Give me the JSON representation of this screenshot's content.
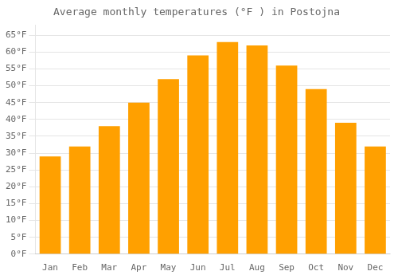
{
  "chart_data": {
    "type": "bar",
    "title": "Average monthly temperatures (°F ) in Postojna",
    "categories": [
      "Jan",
      "Feb",
      "Mar",
      "Apr",
      "May",
      "Jun",
      "Jul",
      "Aug",
      "Sep",
      "Oct",
      "Nov",
      "Dec"
    ],
    "values": [
      29,
      32,
      38,
      45,
      52,
      59,
      63,
      62,
      56,
      49,
      39,
      32
    ],
    "color": "#FFA000",
    "ylim": [
      0,
      68
    ],
    "yticks": [
      {
        "value": 0,
        "label": "0°F"
      },
      {
        "value": 5,
        "label": "5°F"
      },
      {
        "value": 10,
        "label": "10°F"
      },
      {
        "value": 15,
        "label": "15°F"
      },
      {
        "value": 20,
        "label": "20°F"
      },
      {
        "value": 25,
        "label": "25°F"
      },
      {
        "value": 30,
        "label": "30°F"
      },
      {
        "value": 35,
        "label": "35°F"
      },
      {
        "value": 40,
        "label": "40°F"
      },
      {
        "value": 45,
        "label": "45°F"
      },
      {
        "value": 50,
        "label": "50°F"
      },
      {
        "value": 55,
        "label": "55°F"
      },
      {
        "value": 60,
        "label": "60°F"
      },
      {
        "value": 65,
        "label": "65°F"
      }
    ],
    "grid": true
  }
}
